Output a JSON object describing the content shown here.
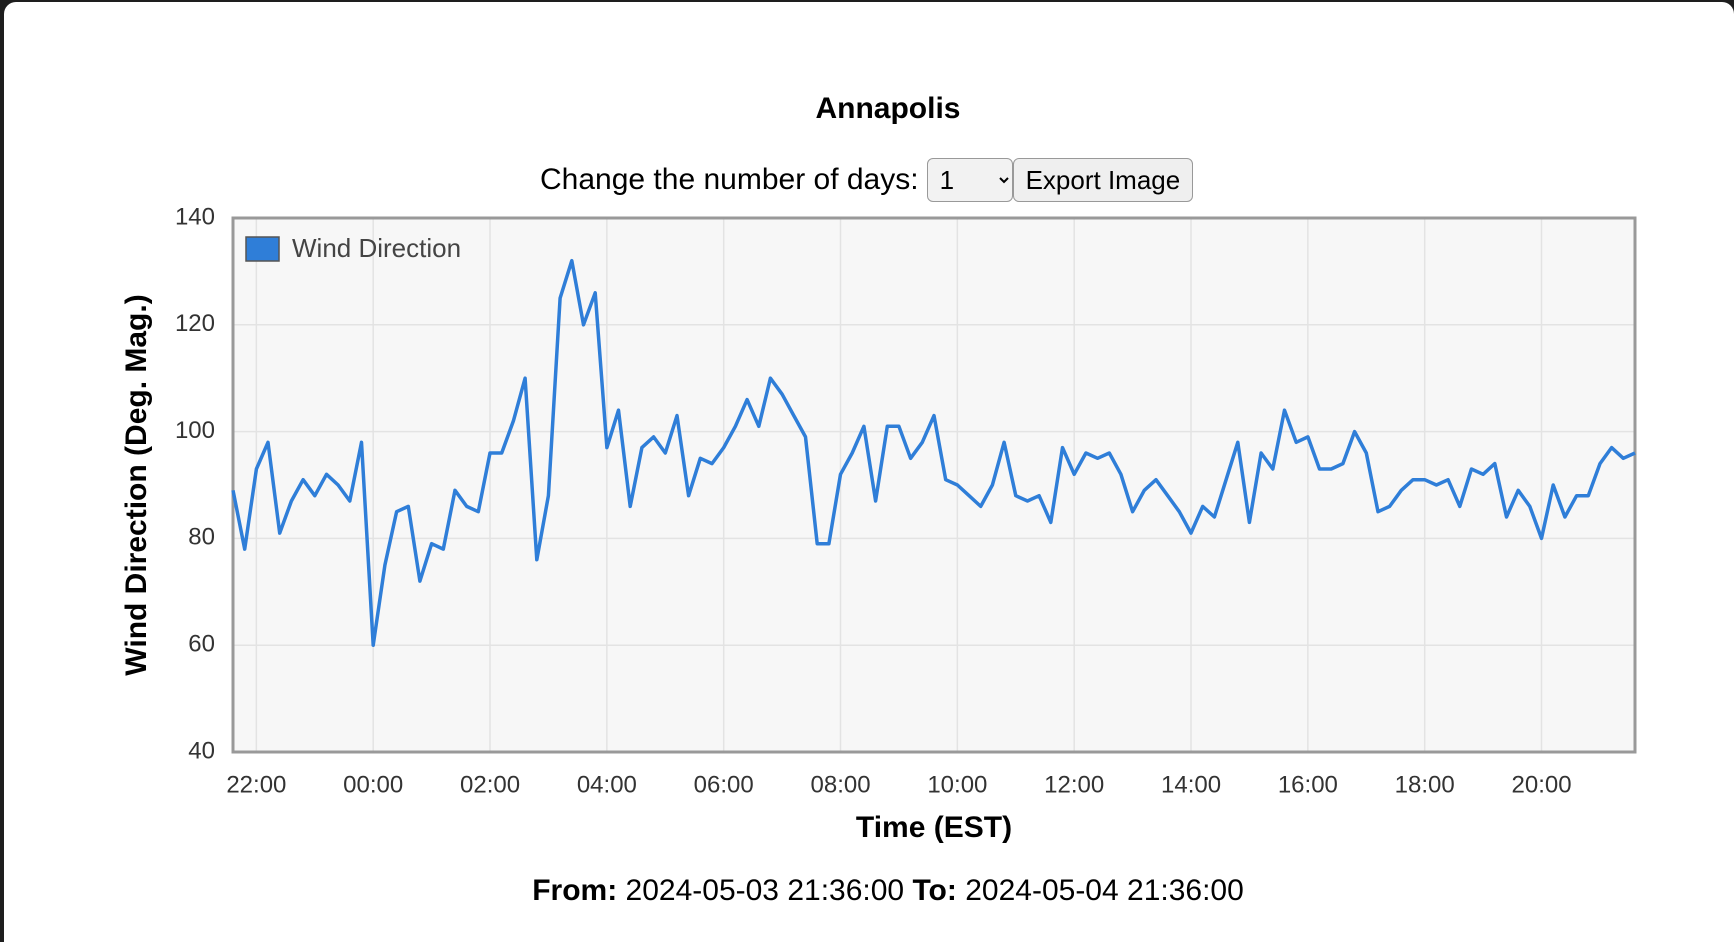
{
  "chart_data": {
    "type": "line",
    "title": "Annapolis",
    "ylabel": "Wind Direction (Deg. Mag.)",
    "xlabel": "Time (EST)",
    "x": [
      21.6,
      21.8,
      22.0,
      22.2,
      22.4,
      22.6,
      22.8,
      23.0,
      23.2,
      23.4,
      23.6,
      23.8,
      24.0,
      24.2,
      24.4,
      24.6,
      24.8,
      25.0,
      25.2,
      25.4,
      25.6,
      25.8,
      26.0,
      26.2,
      26.4,
      26.6,
      26.8,
      27.0,
      27.2,
      27.4,
      27.6,
      27.8,
      28.0,
      28.2,
      28.4,
      28.6,
      28.8,
      29.0,
      29.2,
      29.4,
      29.6,
      29.8,
      30.0,
      30.2,
      30.4,
      30.6,
      30.8,
      31.0,
      31.2,
      31.4,
      31.6,
      31.8,
      32.0,
      32.2,
      32.4,
      32.6,
      32.8,
      33.0,
      33.2,
      33.4,
      33.6,
      33.8,
      34.0,
      34.2,
      34.4,
      34.6,
      34.8,
      35.0,
      35.2,
      35.4,
      35.6,
      35.8,
      36.0,
      36.2,
      36.4,
      36.6,
      36.8,
      37.0,
      37.2,
      37.4,
      37.6,
      37.8,
      38.0,
      38.2,
      38.4,
      38.6,
      38.8,
      39.0,
      39.2,
      39.4,
      39.6,
      39.8,
      40.0,
      40.2,
      40.4,
      40.6,
      40.8,
      41.0,
      41.2,
      41.4,
      41.6,
      41.8,
      42.0,
      42.2,
      42.4,
      42.6,
      42.8,
      43.0,
      43.2,
      43.4,
      43.6,
      43.8,
      44.0,
      44.2,
      44.4,
      44.6,
      44.8,
      45.0,
      45.2,
      45.4,
      45.6
    ],
    "series": [
      {
        "name": "Wind Direction",
        "color": "#2f7ed8",
        "values": [
          89,
          78,
          93,
          98,
          81,
          87,
          91,
          88,
          92,
          90,
          87,
          98,
          60,
          75,
          85,
          86,
          72,
          79,
          78,
          89,
          86,
          85,
          96,
          96,
          102,
          110,
          76,
          88,
          125,
          132,
          120,
          126,
          97,
          104,
          86,
          97,
          99,
          96,
          103,
          88,
          95,
          94,
          97,
          101,
          106,
          101,
          110,
          107,
          103,
          99,
          79,
          79,
          92,
          96,
          101,
          87,
          101,
          101,
          95,
          98,
          103,
          91,
          90,
          88,
          86,
          90,
          98,
          88,
          87,
          88,
          83,
          97,
          92,
          96,
          95,
          96,
          92,
          85,
          89,
          91,
          88,
          85,
          81,
          86,
          84,
          91,
          98,
          83,
          96,
          93,
          104,
          98,
          99,
          93,
          93,
          94,
          100,
          96,
          85,
          86,
          89,
          91,
          91,
          90,
          91,
          86,
          93,
          92,
          94,
          84,
          89,
          86,
          80,
          90,
          84,
          88,
          88,
          94,
          97,
          95,
          96
        ]
      }
    ],
    "xlim": [
      21.6,
      45.6
    ],
    "xticks": [
      {
        "value": 22,
        "label": "22:00"
      },
      {
        "value": 24,
        "label": "00:00"
      },
      {
        "value": 26,
        "label": "02:00"
      },
      {
        "value": 28,
        "label": "04:00"
      },
      {
        "value": 30,
        "label": "06:00"
      },
      {
        "value": 32,
        "label": "08:00"
      },
      {
        "value": 34,
        "label": "10:00"
      },
      {
        "value": 36,
        "label": "12:00"
      },
      {
        "value": 38,
        "label": "14:00"
      },
      {
        "value": 40,
        "label": "16:00"
      },
      {
        "value": 42,
        "label": "18:00"
      },
      {
        "value": 44,
        "label": "20:00"
      }
    ],
    "ylim": [
      40,
      140
    ],
    "yticks": [
      40,
      60,
      80,
      100,
      120,
      140
    ],
    "grid": true,
    "legend": "upper left"
  },
  "controls": {
    "label": "Change the number of days:",
    "days": "1",
    "button": "Export Image"
  },
  "range": {
    "from_label": "From:",
    "from": "2024-05-03 21:36:00",
    "to_label": "To:",
    "to": "2024-05-04 21:36:00"
  }
}
